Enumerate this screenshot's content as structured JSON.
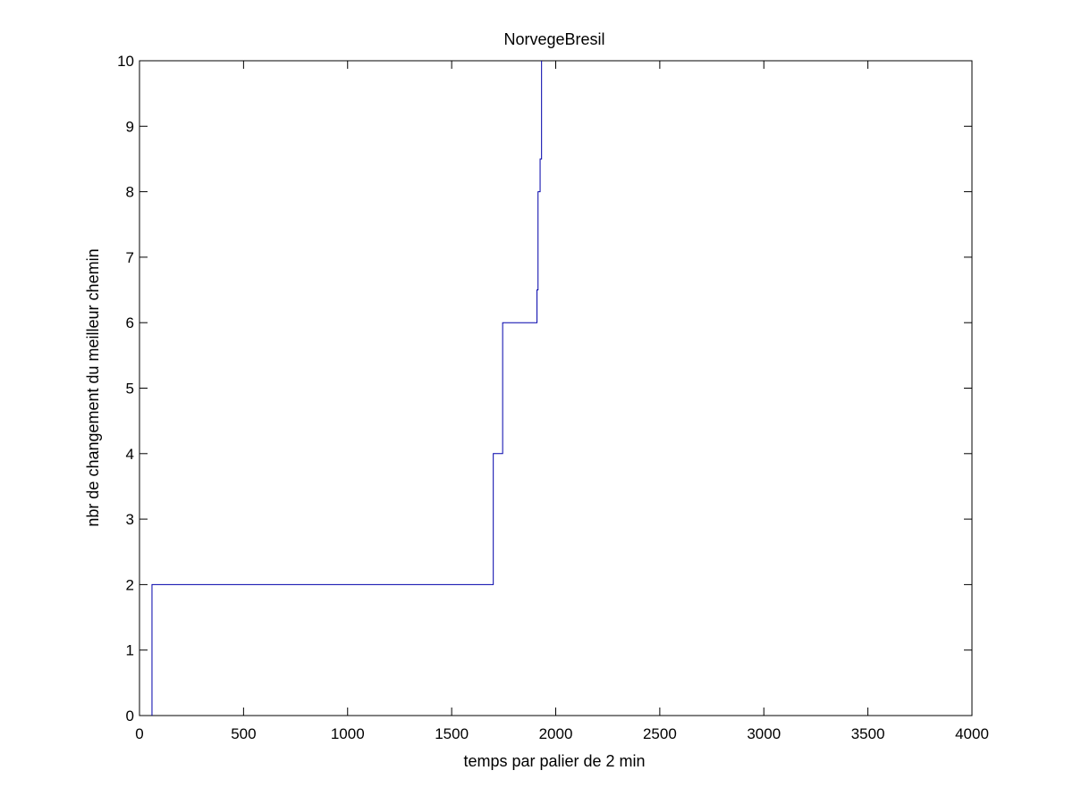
{
  "chart_data": {
    "type": "line",
    "line_style": "step",
    "title": "NorvegeBresil",
    "xlabel": "temps par palier de 2 min",
    "ylabel": "nbr de changement du meilleur chemin",
    "xlim": [
      0,
      4000
    ],
    "ylim": [
      0,
      10
    ],
    "x_ticks": [
      0,
      500,
      1000,
      1500,
      2000,
      2500,
      3000,
      3500,
      4000
    ],
    "y_ticks": [
      0,
      1,
      2,
      3,
      4,
      5,
      6,
      7,
      8,
      9,
      10
    ],
    "grid": false,
    "line_color": "#0000aa",
    "series": [
      {
        "x": [
          60,
          60,
          1700,
          1700,
          1745,
          1745,
          1910,
          1910,
          1915,
          1915,
          1925,
          1925,
          1932,
          1932
        ],
        "y": [
          0,
          2,
          2,
          4,
          4,
          6,
          6,
          6.5,
          6.5,
          8,
          8,
          8.5,
          8.5,
          10
        ]
      }
    ]
  }
}
